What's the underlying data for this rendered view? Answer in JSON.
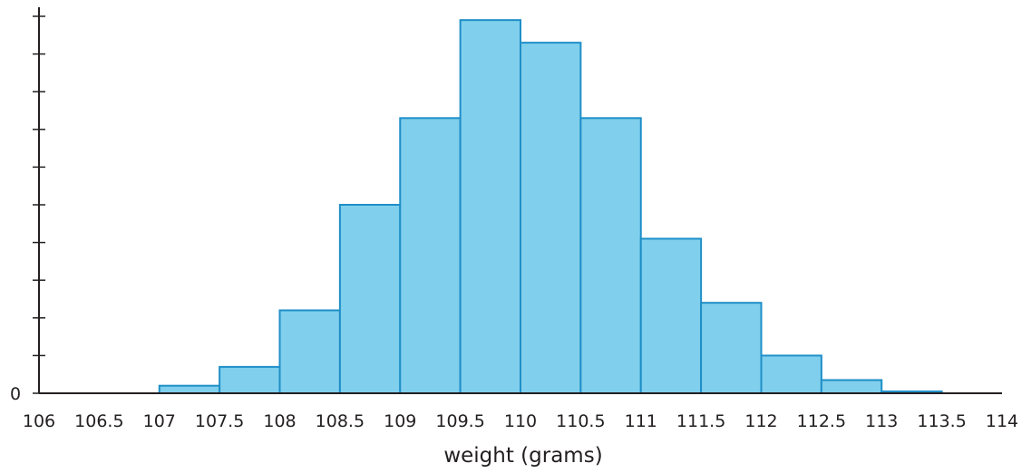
{
  "chart_data": {
    "type": "bar",
    "subtype": "histogram",
    "title": "",
    "xlabel": "weight (grams)",
    "ylabel": "",
    "bin_edges": [
      107,
      107.5,
      108,
      108.5,
      109,
      109.5,
      110,
      110.5,
      111,
      111.5,
      112,
      112.5,
      113,
      113.5
    ],
    "values": [
      0.2,
      0.7,
      2.2,
      5.0,
      7.3,
      9.9,
      9.3,
      7.3,
      4.1,
      2.4,
      1.0,
      0.35,
      0.05
    ],
    "x_ticks": [
      106,
      106.5,
      107,
      107.5,
      108,
      108.5,
      109,
      109.5,
      110,
      110.5,
      111,
      111.5,
      112,
      112.5,
      113,
      113.5,
      114
    ],
    "x_tick_labels": [
      "106",
      "106.5",
      "107",
      "107.5",
      "108",
      "108.5",
      "109",
      "109.5",
      "110",
      "110.5",
      "111",
      "111.5",
      "112",
      "112.5",
      "113",
      "113.5",
      "114"
    ],
    "xlim": [
      106,
      114
    ],
    "y_ticks": [
      0,
      1,
      2,
      3,
      4,
      5,
      6,
      7,
      8,
      9,
      10
    ],
    "y_tick_labels": [
      "0"
    ],
    "ylim": [
      0,
      10
    ],
    "grid": false,
    "legend": "none",
    "colors": {
      "bar_fill": "#80cfec",
      "bar_stroke": "#1f8fc8",
      "axis": "#231f20"
    }
  }
}
